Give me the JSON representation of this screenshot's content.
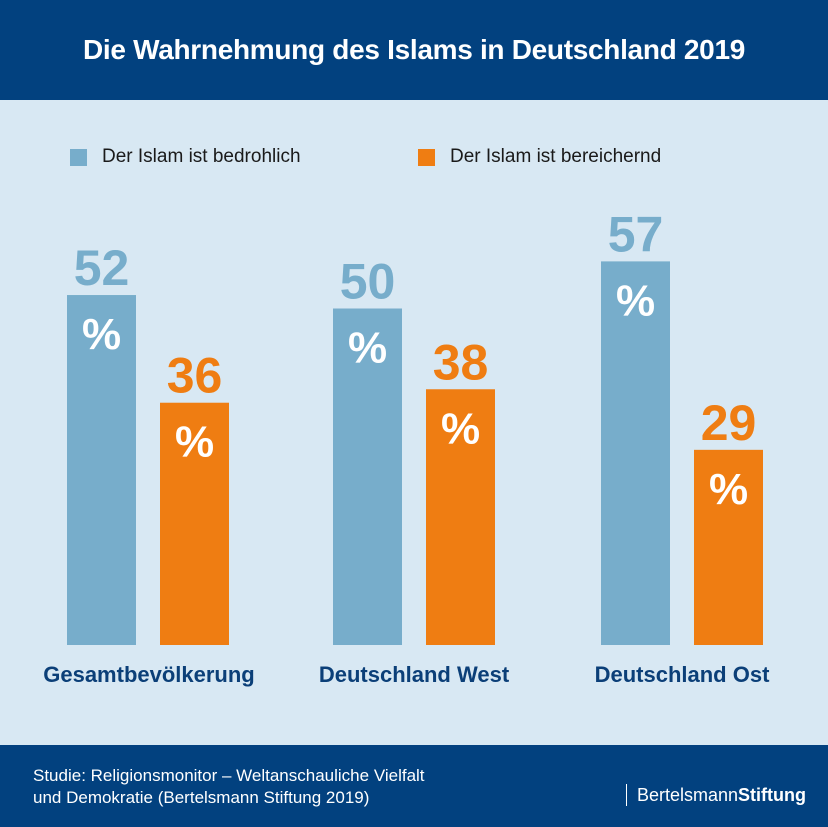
{
  "header": {
    "title": "Die Wahrnehmung des Islams in Deutschland 2019"
  },
  "colors": {
    "header_bg": "#02417f",
    "background": "#d8e8f3",
    "series_bedrohlich": "#77adcb",
    "series_bereichernd": "#ef7d12",
    "category_label": "#0b3f78"
  },
  "chart_data": {
    "type": "bar",
    "title": "Die Wahrnehmung des Islams in Deutschland 2019",
    "categories": [
      "Gesamtbevölkerung",
      "Deutschland West",
      "Deutschland Ost"
    ],
    "series": [
      {
        "name": "Der Islam ist bedrohlich",
        "values": [
          52,
          50,
          57
        ],
        "color": "#77adcb"
      },
      {
        "name": "Der Islam ist bereichernd",
        "values": [
          36,
          38,
          29
        ],
        "color": "#ef7d12"
      }
    ],
    "unit": "%",
    "xlabel": "",
    "ylabel": "",
    "ylim": [
      0,
      100
    ],
    "grid": false,
    "legend": "top"
  },
  "footer": {
    "source_line1": "Studie: Religionsmonitor – Weltanschauliche Vielfalt",
    "source_line2": "und Demokratie (Bertelsmann Stiftung 2019)",
    "logo_regular": "Bertelsmann",
    "logo_bold": "Stiftung"
  }
}
